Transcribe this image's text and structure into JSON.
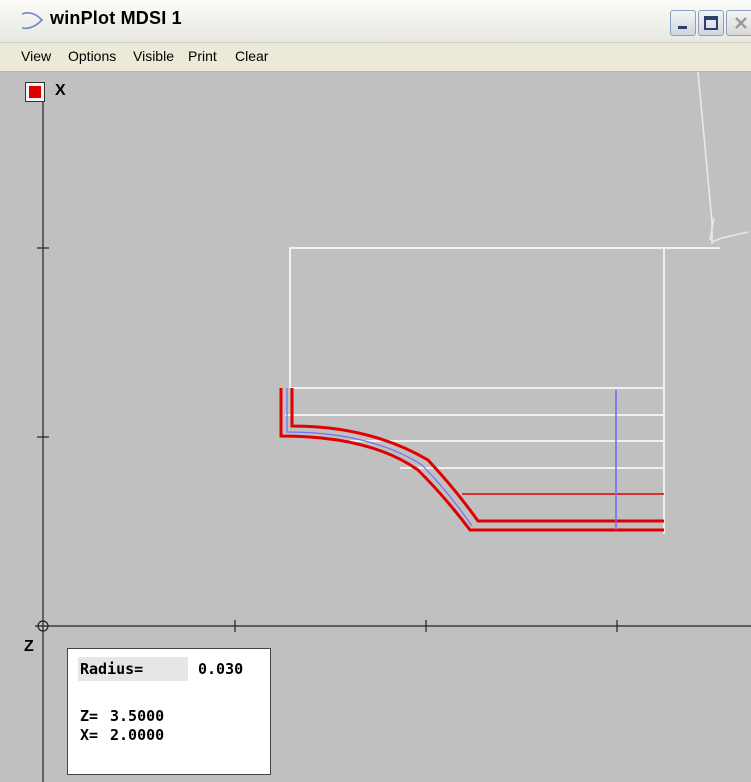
{
  "window": {
    "title": "winPlot MDSI  1"
  },
  "menu": {
    "items": [
      "View",
      "Options",
      "Visible",
      "Print",
      "Clear"
    ]
  },
  "plot": {
    "x_axis_label": "X",
    "z_axis_label": "Z"
  },
  "info": {
    "radius_label": "Radius=",
    "radius_value": "0.030",
    "z_label": "Z=",
    "z_value": "3.5000",
    "x_label": "X=",
    "x_value": "2.0000"
  },
  "colors": {
    "toolpath": "#e00000",
    "stock": "#f0f0f0",
    "tool_marker": "#6e6eff",
    "background": "#c0c0c0"
  },
  "icons": {
    "app": "winplot-app-icon",
    "minimize": "minimize-icon",
    "maximize": "maximize-icon",
    "close": "close-icon"
  }
}
